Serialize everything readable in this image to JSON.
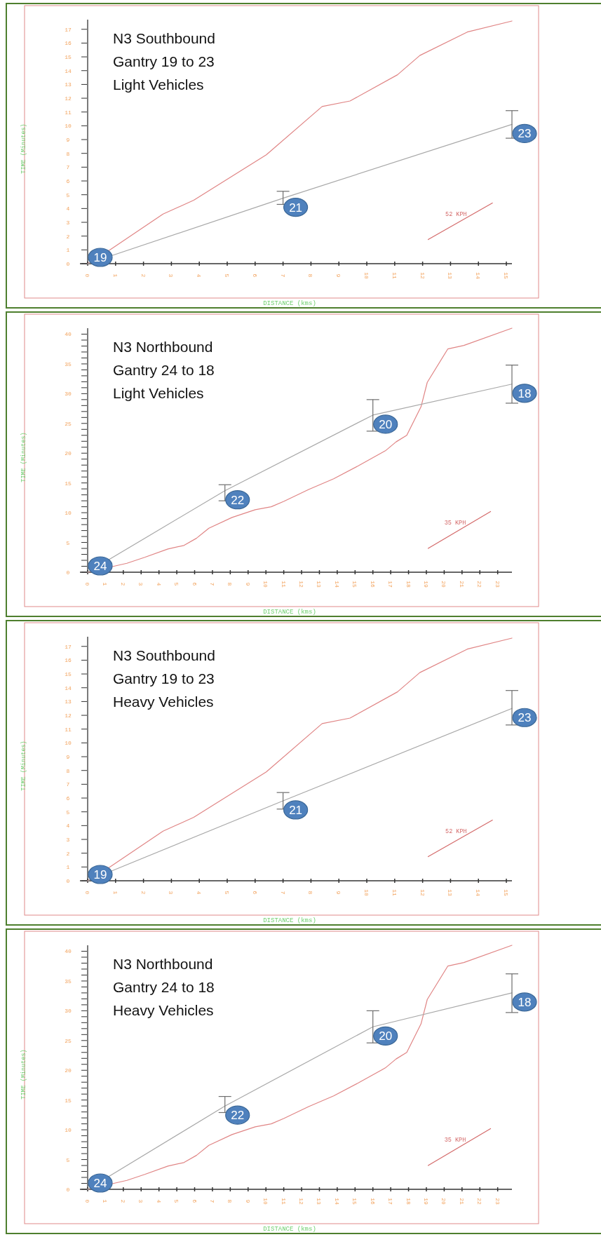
{
  "chart_data": [
    {
      "type": "line",
      "title": "N3 Southbound\nGantry 19 to 23\nLight Vehicles",
      "xlabel": "DISTANCE (kms)",
      "ylabel": "TIME (Minutes)",
      "xlim": [
        0,
        15.2
      ],
      "ylim": [
        0,
        17.7
      ],
      "xticks": [
        0,
        1,
        2,
        3,
        4,
        5,
        6,
        7,
        8,
        9,
        10,
        11,
        12,
        13,
        14,
        15
      ],
      "yticks": [
        0,
        1,
        2,
        3,
        4,
        5,
        6,
        7,
        8,
        9,
        10,
        11,
        12,
        13,
        14,
        15,
        16,
        17
      ],
      "series": [
        {
          "type": "line",
          "color": "#e08585",
          "x": [
            0,
            0.8,
            2.7,
            3.8,
            6.4,
            8.4,
            9.4,
            11.1,
            11.9,
            13.6,
            15.2
          ],
          "values": [
            0,
            1.0,
            3.6,
            4.6,
            7.9,
            11.4,
            11.8,
            13.7,
            15.1,
            16.8,
            17.6
          ]
        },
        {
          "type": "line",
          "color": "#a8a8a8",
          "x": [
            0,
            7,
            15.2
          ],
          "values": [
            0,
            4.75,
            10.1
          ],
          "errors": [
            null,
            [
              4.3,
              5.25
            ],
            [
              9.1,
              11.1
            ]
          ]
        },
        {
          "type": "line",
          "name": "52 KPH",
          "color": "#d46a6a",
          "x": [
            12.2,
            14.5
          ],
          "values": [
            1.75,
            4.4
          ]
        }
      ],
      "annotations": [
        {
          "text": "19",
          "x": 0,
          "y": 0
        },
        {
          "text": "21",
          "x": 7,
          "y": 4.75
        },
        {
          "text": "23",
          "x": 15.2,
          "y": 10.1
        }
      ]
    },
    {
      "type": "line",
      "title": "N3 Northbound\nGantry 24 to 18\nLight Vehicles",
      "xlabel": "DISTANCE (kms)",
      "ylabel": "TIME (Minutes)",
      "xlim": [
        0,
        23.8
      ],
      "ylim": [
        0,
        41
      ],
      "xticks": [
        0,
        1,
        2,
        3,
        4,
        5,
        6,
        7,
        8,
        9,
        10,
        11,
        12,
        13,
        14,
        15,
        16,
        17,
        18,
        19,
        20,
        21,
        22,
        23
      ],
      "yticks": [
        0,
        {
          "value": 1,
          "label": null
        },
        {
          "value": 2,
          "label": null
        },
        {
          "value": 3,
          "label": null
        },
        {
          "value": 4,
          "label": null
        },
        5,
        {
          "value": 6,
          "label": null
        },
        {
          "value": 7,
          "label": null
        },
        {
          "value": 8,
          "label": null
        },
        {
          "value": 9,
          "label": null
        },
        10,
        {
          "value": 11,
          "label": null
        },
        {
          "value": 12,
          "label": null
        },
        {
          "value": 13,
          "label": null
        },
        {
          "value": 14,
          "label": null
        },
        15,
        {
          "value": 16,
          "label": null
        },
        {
          "value": 17,
          "label": null
        },
        {
          "value": 18,
          "label": null
        },
        {
          "value": 19,
          "label": null
        },
        20,
        {
          "value": 21,
          "label": null
        },
        {
          "value": 22,
          "label": null
        },
        {
          "value": 23,
          "label": null
        },
        {
          "value": 24,
          "label": null
        },
        25,
        {
          "value": 26,
          "label": null
        },
        {
          "value": 27,
          "label": null
        },
        {
          "value": 28,
          "label": null
        },
        {
          "value": 29,
          "label": null
        },
        30,
        {
          "value": 31,
          "label": null
        },
        {
          "value": 32,
          "label": null
        },
        {
          "value": 33,
          "label": null
        },
        {
          "value": 34,
          "label": null
        },
        35,
        {
          "value": 36,
          "label": null
        },
        {
          "value": 37,
          "label": null
        },
        {
          "value": 38,
          "label": null
        },
        {
          "value": 39,
          "label": null
        },
        40
      ],
      "series": [
        {
          "type": "line",
          "color": "#e08585",
          "x": [
            0,
            2.2,
            3.2,
            4.5,
            5.4,
            6.1,
            6.8,
            8.1,
            9.4,
            10.3,
            11,
            12.4,
            13.8,
            15.2,
            16.7,
            17.3,
            17.9,
            18.7,
            19.05,
            20.2,
            21.1,
            23.8
          ],
          "values": [
            0,
            1.5,
            2.5,
            3.9,
            4.5,
            5.7,
            7.4,
            9.2,
            10.5,
            11,
            11.9,
            13.9,
            15.7,
            17.9,
            20.4,
            21.9,
            23,
            27.8,
            31.9,
            37.5,
            38.1,
            41
          ]
        },
        {
          "type": "line",
          "color": "#a8a8a8",
          "x": [
            0,
            7.7,
            16,
            23.8
          ],
          "values": [
            0,
            13.7,
            26.4,
            31.6
          ],
          "errors": [
            null,
            [
              12,
              14.7
            ],
            [
              23.7,
              29
            ],
            [
              28.4,
              34.8
            ]
          ]
        },
        {
          "type": "line",
          "name": "35 KPH",
          "color": "#d46a6a",
          "x": [
            19.1,
            22.6
          ],
          "values": [
            4,
            10.2
          ]
        }
      ],
      "annotations": [
        {
          "text": "24",
          "x": 0,
          "y": 0
        },
        {
          "text": "22",
          "x": 7.7,
          "y": 13.7
        },
        {
          "text": "20",
          "x": 16,
          "y": 26.4
        },
        {
          "text": "18",
          "x": 23.8,
          "y": 31.6
        }
      ]
    },
    {
      "type": "line",
      "title": "N3 Southbound\nGantry 19 to 23\nHeavy Vehicles",
      "xlabel": "DISTANCE (kms)",
      "ylabel": "TIME (Minutes)",
      "xlim": [
        0,
        15.2
      ],
      "ylim": [
        0,
        17.7
      ],
      "xticks": [
        0,
        1,
        2,
        3,
        4,
        5,
        6,
        7,
        8,
        9,
        10,
        11,
        12,
        13,
        14,
        15
      ],
      "yticks": [
        0,
        1,
        2,
        3,
        4,
        5,
        6,
        7,
        8,
        9,
        10,
        11,
        12,
        13,
        14,
        15,
        16,
        17
      ],
      "series": [
        {
          "type": "line",
          "color": "#e08585",
          "x": [
            0,
            0.8,
            2.7,
            3.8,
            6.4,
            8.4,
            9.4,
            11.1,
            11.9,
            13.6,
            15.2
          ],
          "values": [
            0,
            1.0,
            3.6,
            4.6,
            7.9,
            11.4,
            11.8,
            13.7,
            15.1,
            16.8,
            17.6
          ]
        },
        {
          "type": "line",
          "color": "#a8a8a8",
          "x": [
            0,
            7,
            15.2
          ],
          "values": [
            0,
            5.8,
            12.5
          ],
          "errors": [
            null,
            [
              5.2,
              6.4
            ],
            [
              11.3,
              13.8
            ]
          ]
        },
        {
          "type": "line",
          "name": "52 KPH",
          "color": "#d46a6a",
          "x": [
            12.2,
            14.5
          ],
          "values": [
            1.75,
            4.4
          ]
        }
      ],
      "annotations": [
        {
          "text": "19",
          "x": 0,
          "y": 0
        },
        {
          "text": "21",
          "x": 7,
          "y": 5.8
        },
        {
          "text": "23",
          "x": 15.2,
          "y": 12.5
        }
      ]
    },
    {
      "type": "line",
      "title": "N3 Northbound\nGantry 24 to 18\nHeavy Vehicles",
      "xlabel": "DISTANCE (kms)",
      "ylabel": "TIME (Minutes)",
      "xlim": [
        0,
        23.8
      ],
      "ylim": [
        0,
        41
      ],
      "xticks": [
        0,
        1,
        2,
        3,
        4,
        5,
        6,
        7,
        8,
        9,
        10,
        11,
        12,
        13,
        14,
        15,
        16,
        17,
        18,
        19,
        20,
        21,
        22,
        23
      ],
      "yticks": [
        0,
        {
          "value": 1,
          "label": null
        },
        {
          "value": 2,
          "label": null
        },
        {
          "value": 3,
          "label": null
        },
        {
          "value": 4,
          "label": null
        },
        5,
        {
          "value": 6,
          "label": null
        },
        {
          "value": 7,
          "label": null
        },
        {
          "value": 8,
          "label": null
        },
        {
          "value": 9,
          "label": null
        },
        10,
        {
          "value": 11,
          "label": null
        },
        {
          "value": 12,
          "label": null
        },
        {
          "value": 13,
          "label": null
        },
        {
          "value": 14,
          "label": null
        },
        15,
        {
          "value": 16,
          "label": null
        },
        {
          "value": 17,
          "label": null
        },
        {
          "value": 18,
          "label": null
        },
        {
          "value": 19,
          "label": null
        },
        20,
        {
          "value": 21,
          "label": null
        },
        {
          "value": 22,
          "label": null
        },
        {
          "value": 23,
          "label": null
        },
        {
          "value": 24,
          "label": null
        },
        25,
        {
          "value": 26,
          "label": null
        },
        {
          "value": 27,
          "label": null
        },
        {
          "value": 28,
          "label": null
        },
        {
          "value": 29,
          "label": null
        },
        30,
        {
          "value": 31,
          "label": null
        },
        {
          "value": 32,
          "label": null
        },
        {
          "value": 33,
          "label": null
        },
        {
          "value": 34,
          "label": null
        },
        35,
        {
          "value": 36,
          "label": null
        },
        {
          "value": 37,
          "label": null
        },
        {
          "value": 38,
          "label": null
        },
        {
          "value": 39,
          "label": null
        },
        40
      ],
      "series": [
        {
          "type": "line",
          "color": "#e08585",
          "x": [
            0,
            2.2,
            3.2,
            4.5,
            5.4,
            6.1,
            6.8,
            8.1,
            9.4,
            10.3,
            11,
            12.4,
            13.8,
            15.2,
            16.7,
            17.3,
            17.9,
            18.7,
            19.05,
            20.2,
            21.1,
            23.8
          ],
          "values": [
            0,
            1.5,
            2.5,
            3.9,
            4.5,
            5.7,
            7.4,
            9.2,
            10.5,
            11,
            11.9,
            13.9,
            15.7,
            17.9,
            20.4,
            21.9,
            23,
            27.8,
            31.9,
            37.5,
            38.1,
            41
          ]
        },
        {
          "type": "line",
          "color": "#a8a8a8",
          "x": [
            0,
            7.7,
            16,
            23.8
          ],
          "values": [
            0,
            14,
            27.3,
            33
          ],
          "errors": [
            null,
            [
              12.9,
              15.6
            ],
            [
              24.6,
              30
            ],
            [
              29.7,
              36.2
            ]
          ]
        },
        {
          "type": "line",
          "name": "35 KPH",
          "color": "#d46a6a",
          "x": [
            19.1,
            22.6
          ],
          "values": [
            4,
            10.2
          ]
        }
      ],
      "annotations": [
        {
          "text": "24",
          "x": 0,
          "y": 0
        },
        {
          "text": "22",
          "x": 7.7,
          "y": 14
        },
        {
          "text": "20",
          "x": 16,
          "y": 27.3
        },
        {
          "text": "18",
          "x": 23.8,
          "y": 33
        }
      ]
    }
  ]
}
